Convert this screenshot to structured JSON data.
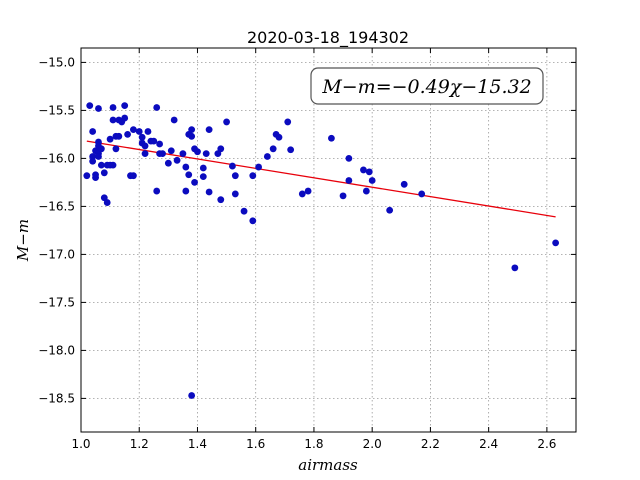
{
  "chart_data": {
    "type": "scatter",
    "title": "2020-03-18_194302",
    "xlabel": "airmass",
    "ylabel": "M−m",
    "xlim": [
      1.0,
      2.7
    ],
    "ylim": [
      -18.85,
      -14.85
    ],
    "y_inverted": true,
    "grid": true,
    "x_ticks": [
      1.0,
      1.2,
      1.4,
      1.6,
      1.8,
      2.0,
      2.2,
      2.4,
      2.6
    ],
    "x_tick_labels": [
      "1.0",
      "1.2",
      "1.4",
      "1.6",
      "1.8",
      "2.0",
      "2.2",
      "2.4",
      "2.6"
    ],
    "y_ticks": [
      -15.0,
      -15.5,
      -16.0,
      -16.5,
      -17.0,
      -17.5,
      -18.0,
      -18.5
    ],
    "y_tick_labels": [
      "−15.0",
      "−15.5",
      "−16.0",
      "−16.5",
      "−17.0",
      "−17.5",
      "−18.0",
      "−18.5"
    ],
    "annotation": "M−m=−0.49χ−15.32",
    "fit_line": {
      "slope": -0.49,
      "intercept": -15.32,
      "x_range": [
        1.02,
        2.63
      ],
      "color": "#e8000b"
    },
    "marker_color": "#0b0bbf",
    "points": [
      [
        1.02,
        -16.18
      ],
      [
        1.03,
        -15.45
      ],
      [
        1.04,
        -15.72
      ],
      [
        1.04,
        -15.98
      ],
      [
        1.04,
        -16.03
      ],
      [
        1.05,
        -15.92
      ],
      [
        1.05,
        -16.2
      ],
      [
        1.05,
        -16.17
      ],
      [
        1.06,
        -15.48
      ],
      [
        1.06,
        -15.83
      ],
      [
        1.06,
        -15.87
      ],
      [
        1.06,
        -15.95
      ],
      [
        1.06,
        -15.98
      ],
      [
        1.07,
        -15.9
      ],
      [
        1.07,
        -16.07
      ],
      [
        1.08,
        -16.15
      ],
      [
        1.08,
        -16.41
      ],
      [
        1.09,
        -16.46
      ],
      [
        1.09,
        -16.07
      ],
      [
        1.1,
        -15.8
      ],
      [
        1.1,
        -16.07
      ],
      [
        1.11,
        -15.6
      ],
      [
        1.11,
        -15.47
      ],
      [
        1.11,
        -16.07
      ],
      [
        1.12,
        -15.77
      ],
      [
        1.12,
        -15.9
      ],
      [
        1.13,
        -15.6
      ],
      [
        1.13,
        -15.77
      ],
      [
        1.14,
        -15.62
      ],
      [
        1.15,
        -15.58
      ],
      [
        1.15,
        -15.45
      ],
      [
        1.16,
        -15.75
      ],
      [
        1.17,
        -16.18
      ],
      [
        1.18,
        -16.18
      ],
      [
        1.18,
        -15.7
      ],
      [
        1.2,
        -15.72
      ],
      [
        1.21,
        -15.78
      ],
      [
        1.21,
        -15.84
      ],
      [
        1.22,
        -15.87
      ],
      [
        1.22,
        -15.95
      ],
      [
        1.23,
        -15.72
      ],
      [
        1.24,
        -15.82
      ],
      [
        1.25,
        -15.82
      ],
      [
        1.26,
        -15.47
      ],
      [
        1.26,
        -16.34
      ],
      [
        1.27,
        -15.85
      ],
      [
        1.27,
        -15.95
      ],
      [
        1.28,
        -15.95
      ],
      [
        1.3,
        -16.05
      ],
      [
        1.31,
        -15.92
      ],
      [
        1.32,
        -15.6
      ],
      [
        1.33,
        -16.02
      ],
      [
        1.35,
        -15.95
      ],
      [
        1.36,
        -16.34
      ],
      [
        1.36,
        -16.09
      ],
      [
        1.37,
        -16.17
      ],
      [
        1.37,
        -15.75
      ],
      [
        1.38,
        -15.7
      ],
      [
        1.38,
        -15.77
      ],
      [
        1.38,
        -18.47
      ],
      [
        1.39,
        -16.25
      ],
      [
        1.39,
        -15.9
      ],
      [
        1.4,
        -15.93
      ],
      [
        1.42,
        -16.1
      ],
      [
        1.42,
        -16.19
      ],
      [
        1.43,
        -15.95
      ],
      [
        1.44,
        -15.7
      ],
      [
        1.44,
        -16.35
      ],
      [
        1.47,
        -15.95
      ],
      [
        1.48,
        -15.9
      ],
      [
        1.48,
        -16.43
      ],
      [
        1.5,
        -15.62
      ],
      [
        1.52,
        -16.08
      ],
      [
        1.53,
        -16.37
      ],
      [
        1.53,
        -16.18
      ],
      [
        1.56,
        -16.55
      ],
      [
        1.59,
        -16.65
      ],
      [
        1.59,
        -16.18
      ],
      [
        1.61,
        -16.09
      ],
      [
        1.64,
        -15.98
      ],
      [
        1.66,
        -15.9
      ],
      [
        1.67,
        -15.75
      ],
      [
        1.68,
        -15.78
      ],
      [
        1.71,
        -15.62
      ],
      [
        1.72,
        -15.91
      ],
      [
        1.76,
        -16.37
      ],
      [
        1.78,
        -16.34
      ],
      [
        1.86,
        -15.79
      ],
      [
        1.9,
        -16.39
      ],
      [
        1.92,
        -16.0
      ],
      [
        1.92,
        -16.23
      ],
      [
        1.97,
        -16.12
      ],
      [
        1.98,
        -16.34
      ],
      [
        1.99,
        -16.14
      ],
      [
        2.0,
        -16.23
      ],
      [
        2.06,
        -16.54
      ],
      [
        2.11,
        -16.27
      ],
      [
        2.17,
        -16.37
      ],
      [
        2.49,
        -17.14
      ],
      [
        2.63,
        -16.88
      ]
    ]
  }
}
